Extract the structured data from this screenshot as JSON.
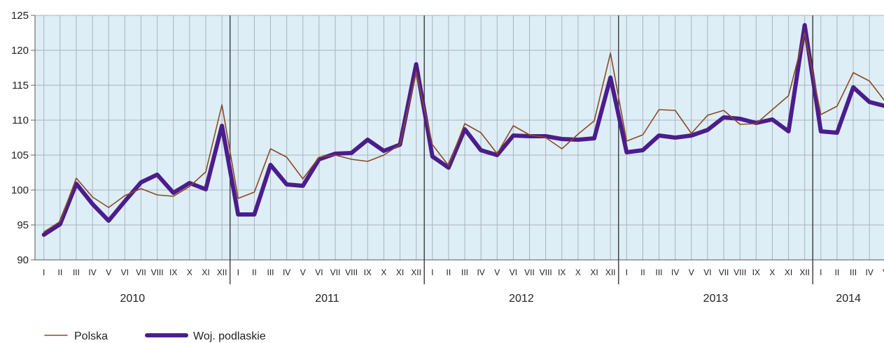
{
  "chart_data": {
    "type": "line",
    "title": "",
    "xlabel": "",
    "ylabel": "",
    "ylim": [
      90,
      125
    ],
    "yticks": [
      90,
      95,
      100,
      105,
      110,
      115,
      120,
      125
    ],
    "grid": true,
    "legend_position": "bottom-left",
    "colors": {
      "plot_background": "#deeef7",
      "grid": "#a9b3ba",
      "year_divider": "#444444",
      "Polska": "#8b4a22",
      "Woj. podlaskie": "#4b1d8c"
    },
    "years": [
      {
        "label": "2010",
        "months": 12
      },
      {
        "label": "2011",
        "months": 12
      },
      {
        "label": "2012",
        "months": 12
      },
      {
        "label": "2013",
        "months": 12
      },
      {
        "label": "2014",
        "months": 5
      }
    ],
    "month_labels": [
      "I",
      "II",
      "III",
      "IV",
      "V",
      "VI",
      "VII",
      "VIII",
      "IX",
      "X",
      "XI",
      "XII",
      "I",
      "II",
      "III",
      "IV",
      "V",
      "VI",
      "VII",
      "VIII",
      "IX",
      "X",
      "XI",
      "XII",
      "I",
      "II",
      "III",
      "IV",
      "V",
      "VI",
      "VII",
      "VIII",
      "IX",
      "X",
      "XI",
      "XII",
      "I",
      "II",
      "III",
      "IV",
      "V",
      "VI",
      "VII",
      "VIII",
      "IX",
      "X",
      "XI",
      "XII",
      "I",
      "II",
      "III",
      "IV",
      "V"
    ],
    "series": [
      {
        "name": "Polska",
        "values": [
          94.0,
          95.5,
          101.7,
          99.0,
          97.5,
          99.2,
          100.2,
          99.3,
          99.1,
          100.5,
          102.6,
          112.2,
          98.8,
          99.7,
          105.9,
          104.7,
          101.6,
          104.7,
          105.0,
          104.4,
          104.1,
          105.0,
          106.5,
          116.9,
          106.5,
          103.5,
          109.5,
          108.2,
          105.2,
          109.2,
          107.9,
          107.5,
          105.9,
          108.0,
          109.9,
          119.6,
          107.0,
          107.9,
          111.5,
          111.4,
          108.1,
          110.7,
          111.4,
          109.4,
          109.5,
          111.5,
          113.5,
          122.5,
          110.8,
          112.0,
          116.8,
          115.6,
          112.6
        ]
      },
      {
        "name": "Woj. podlaskie",
        "values": [
          93.6,
          95.1,
          100.9,
          98.0,
          95.6,
          98.4,
          101.1,
          102.2,
          99.6,
          101.0,
          100.1,
          109.2,
          96.5,
          96.5,
          103.6,
          100.8,
          100.6,
          104.4,
          105.2,
          105.3,
          107.2,
          105.6,
          106.5,
          118.0,
          104.8,
          103.2,
          108.7,
          105.7,
          105.0,
          107.8,
          107.7,
          107.7,
          107.3,
          107.2,
          107.4,
          116.1,
          105.4,
          105.7,
          107.8,
          107.5,
          107.8,
          108.6,
          110.4,
          110.2,
          109.6,
          110.1,
          108.4,
          123.6,
          108.4,
          108.2,
          114.7,
          112.6,
          112.0
        ]
      }
    ]
  }
}
